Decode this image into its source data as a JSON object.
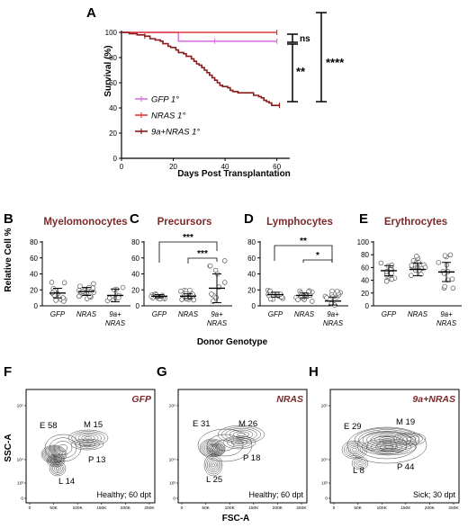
{
  "panelA": {
    "letter": "A",
    "ylabel": "Survival (%)",
    "xlabel": "Days Post Transplantation",
    "yticks": [
      "0",
      "20",
      "40",
      "60",
      "80",
      "100"
    ],
    "xticks": [
      "0",
      "20",
      "40",
      "60"
    ],
    "legend": [
      {
        "label": "GFP 1°",
        "color": "#d975e0"
      },
      {
        "label": "NRAS 1°",
        "color": "#e23a3a"
      },
      {
        "label": "9a+NRAS 1°",
        "color": "#8b1a1a"
      }
    ],
    "sig": {
      "ns": "ns",
      "s2": "**",
      "s4": "****"
    }
  },
  "chart_data": [
    {
      "type": "line",
      "xlabel": "Days Post Transplantation",
      "ylabel": "Survival (%)",
      "xlim": [
        0,
        65
      ],
      "ylim": [
        0,
        100
      ],
      "series": [
        {
          "name": "GFP 1°",
          "color": "#d975e0",
          "points": [
            [
              0,
              100
            ],
            [
              22,
              100
            ],
            [
              22,
              93
            ],
            [
              60,
              93
            ]
          ]
        },
        {
          "name": "NRAS 1°",
          "color": "#e23a3a",
          "points": [
            [
              0,
              100
            ],
            [
              60,
              100
            ]
          ]
        },
        {
          "name": "9a+NRAS 1°",
          "color": "#8b1a1a",
          "points": [
            [
              0,
              100
            ],
            [
              3,
              99
            ],
            [
              6,
              98
            ],
            [
              9,
              97
            ],
            [
              11,
              95
            ],
            [
              13,
              94
            ],
            [
              15,
              93
            ],
            [
              16,
              91
            ],
            [
              18,
              89
            ],
            [
              19,
              88
            ],
            [
              21,
              86
            ],
            [
              22,
              84
            ],
            [
              24,
              83
            ],
            [
              25,
              81
            ],
            [
              27,
              79
            ],
            [
              28,
              77
            ],
            [
              29,
              75
            ],
            [
              30,
              74
            ],
            [
              31,
              72
            ],
            [
              32,
              70
            ],
            [
              33,
              68
            ],
            [
              34,
              66
            ],
            [
              35,
              64
            ],
            [
              36,
              62
            ],
            [
              37,
              60
            ],
            [
              38,
              58
            ],
            [
              39,
              57
            ],
            [
              41,
              56
            ],
            [
              42,
              54
            ],
            [
              43,
              53
            ],
            [
              45,
              52
            ],
            [
              50,
              52
            ],
            [
              51,
              50
            ],
            [
              53,
              49
            ],
            [
              54,
              48
            ],
            [
              55,
              46
            ],
            [
              56,
              45
            ],
            [
              57,
              44
            ],
            [
              58,
              42
            ],
            [
              61,
              42
            ]
          ]
        }
      ]
    },
    {
      "type": "scatter",
      "title": "Myelomonocytes",
      "ylabel": "Relative Cell %",
      "xlabel": "Donor Genotype",
      "categories": [
        "GFP",
        "NRAS",
        "9a+NRAS"
      ],
      "ylim": [
        0,
        80
      ],
      "median": [
        16,
        18,
        13
      ]
    },
    {
      "type": "scatter",
      "title": "Precursors",
      "categories": [
        "GFP",
        "NRAS",
        "9a+NRAS"
      ],
      "ylim": [
        0,
        80
      ],
      "median": [
        12,
        12,
        22
      ]
    },
    {
      "type": "scatter",
      "title": "Lymphocytes",
      "categories": [
        "GFP",
        "NRAS",
        "9a+NRAS"
      ],
      "ylim": [
        0,
        80
      ],
      "median": [
        14,
        13,
        6
      ]
    },
    {
      "type": "scatter",
      "title": "Erythrocytes",
      "categories": [
        "GFP",
        "NRAS",
        "9a+NRAS"
      ],
      "ylim": [
        0,
        100
      ],
      "median": [
        55,
        57,
        53
      ]
    }
  ],
  "panelsBE": {
    "ylabel": "Relative Cell %",
    "xlabel": "Donor Genotype",
    "cats": [
      "GFP",
      "NRAS",
      "9a+"
    ],
    "cat3b": "NRAS",
    "yt80": [
      "0",
      "20",
      "40",
      "60",
      "80"
    ],
    "yt100": [
      "0",
      "20",
      "40",
      "60",
      "80",
      "100"
    ],
    "B": {
      "letter": "B",
      "title": "Myelomonocytes"
    },
    "C": {
      "letter": "C",
      "title": "Precursors",
      "sig1": "***",
      "sig2": "***"
    },
    "D": {
      "letter": "D",
      "title": "Lymphocytes",
      "sig1": "**",
      "sig2": "*"
    },
    "E": {
      "letter": "E",
      "title": "Erythrocytes"
    }
  },
  "flow": {
    "ylabel": "SSC-A",
    "xlabel": "FSC-A",
    "yticks": [
      "0",
      "10³",
      "10⁴",
      "10⁵"
    ],
    "xticks": [
      "0",
      "50K",
      "100K",
      "150K",
      "200K",
      "250K"
    ],
    "F": {
      "letter": "F",
      "genotype": "GFP",
      "gates": {
        "E": "E 58",
        "M": "M 15",
        "P": "P 13",
        "L": "L 14"
      },
      "status": "Healthy; 60 dpt"
    },
    "G": {
      "letter": "G",
      "genotype": "NRAS",
      "gates": {
        "E": "E 31",
        "M": "M 26",
        "P": "P 18",
        "L": "L 25"
      },
      "status": "Healthy; 60 dpt"
    },
    "H": {
      "letter": "H",
      "genotype": "9a+NRAS",
      "gates": {
        "E": "E 29",
        "M": "M 19",
        "P": "P 44",
        "L": "L 8"
      },
      "status": "Sick; 30 dpt"
    }
  }
}
